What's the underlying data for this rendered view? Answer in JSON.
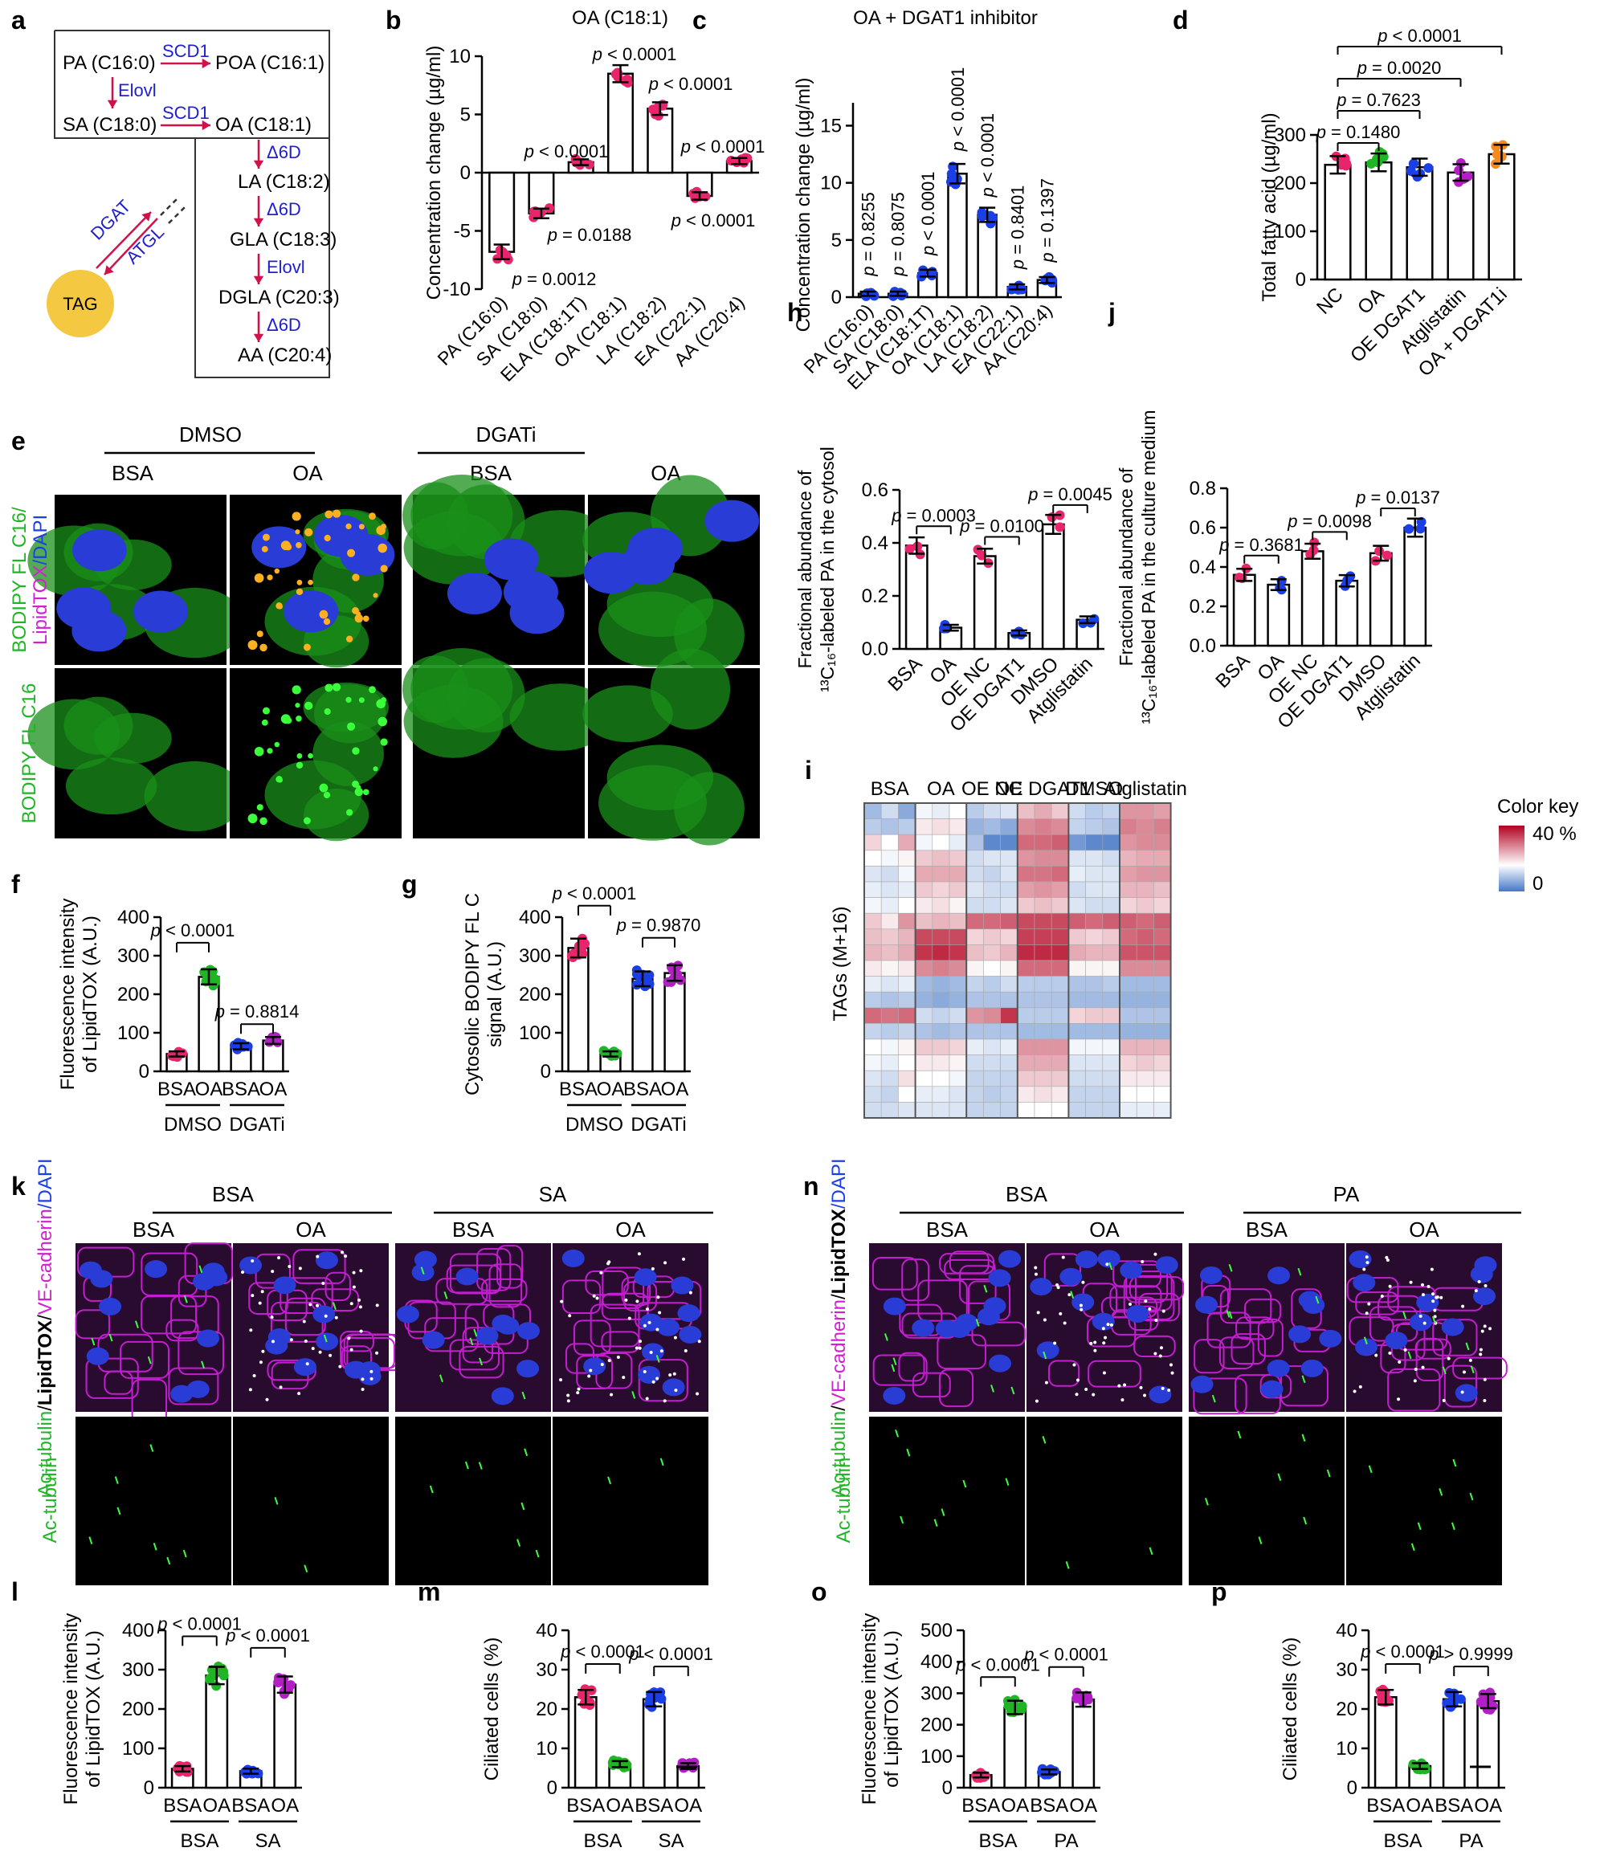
{
  "panel_letters": {
    "a": "a",
    "b": "b",
    "c": "c",
    "d": "d",
    "e": "e",
    "f": "f",
    "g": "g",
    "h": "h",
    "i": "i",
    "j": "j",
    "k": "k",
    "l": "l",
    "m": "m",
    "n": "n",
    "o": "o",
    "p": "p"
  },
  "colors": {
    "pink": "#e8246d",
    "green": "#1fb524",
    "blue": "#1b3fe6",
    "purple": "#b21fc4",
    "orange": "#f5891f",
    "arrow": "#d1114a",
    "enzyme": "#2020d0",
    "tag_fill": "#f5c842"
  },
  "pathway": {
    "nodes": [
      "PA (C16:0)",
      "POA (C16:1)",
      "SA (C18:0)",
      "OA (C18:1)",
      "LA (C18:2)",
      "GLA (C18:3)",
      "DGLA (C20:3)",
      "AA (C20:4)"
    ],
    "enzymes": [
      "SCD1",
      "Elovl",
      "SCD1",
      "Δ6D",
      "Δ6D",
      "Elovl",
      "Δ6D"
    ],
    "tag": "TAG",
    "tag_enzymes": [
      "DGAT",
      "ATGL"
    ]
  },
  "panel_e": {
    "groups": [
      "DMSO",
      "DGATi"
    ],
    "conds": [
      "BSA",
      "OA",
      "BSA",
      "OA"
    ],
    "row_labels": {
      "row1_a": "BODIPY FL C",
      "row1_sub": "16",
      "row1_b": "/",
      "row1_c": "LipidTOX",
      "row1_d": "/DAPI",
      "row2_a": "BODIPY FL C",
      "row2_sub": "16"
    }
  },
  "panel_k": {
    "groups": [
      "BSA",
      "SA"
    ],
    "conds": [
      "BSA",
      "OA",
      "BSA",
      "OA"
    ],
    "row1": [
      "Ac-tubulin",
      "/",
      "LipidTOX",
      "/",
      "VE-cadherin",
      "/DAPI"
    ],
    "row2": "Ac-tubulin"
  },
  "panel_n": {
    "groups": [
      "BSA",
      "PA"
    ],
    "conds": [
      "BSA",
      "OA",
      "BSA",
      "OA"
    ],
    "row1": [
      "Ac-tubulin",
      "/",
      "VE-cadherin",
      "/",
      "LipidTOX",
      "/DAPI"
    ],
    "row2": "Ac-tubulin"
  },
  "heatmap": {
    "columns": [
      "BSA",
      "OA",
      "OE NC",
      "OE DGAT1",
      "DMSO",
      "Atglistatin"
    ],
    "ylabel": "TAGs (M+16)",
    "key_title": "Color key",
    "key_max": "40 %",
    "key_min": "0",
    "rows": [
      [
        8,
        12,
        6,
        15,
        14,
        16,
        10,
        12,
        13,
        22,
        24,
        21,
        12,
        10,
        11,
        26,
        26,
        25
      ],
      [
        10,
        9,
        10,
        18,
        19,
        18,
        7,
        8,
        6,
        27,
        28,
        27,
        11,
        10,
        9,
        28,
        27,
        28
      ],
      [
        20,
        16,
        24,
        15,
        16,
        14,
        9,
        2,
        2,
        30,
        30,
        31,
        4,
        2,
        2,
        26,
        27,
        27
      ],
      [
        16,
        15,
        17,
        21,
        22,
        21,
        12,
        13,
        13,
        26,
        27,
        27,
        13,
        13,
        12,
        23,
        24,
        24
      ],
      [
        13,
        12,
        15,
        24,
        24,
        24,
        12,
        11,
        13,
        29,
        29,
        30,
        14,
        13,
        13,
        25,
        26,
        26
      ],
      [
        14,
        13,
        14,
        21,
        20,
        21,
        13,
        12,
        12,
        25,
        26,
        25,
        12,
        13,
        13,
        23,
        23,
        22
      ],
      [
        15,
        14,
        16,
        18,
        19,
        17,
        12,
        12,
        13,
        21,
        22,
        21,
        13,
        12,
        12,
        20,
        21,
        20
      ],
      [
        21,
        18,
        26,
        22,
        23,
        22,
        30,
        30,
        31,
        33,
        33,
        33,
        31,
        30,
        31,
        31,
        30,
        31
      ],
      [
        22,
        21,
        23,
        33,
        33,
        33,
        20,
        21,
        20,
        34,
        34,
        34,
        21,
        20,
        21,
        30,
        31,
        30
      ],
      [
        23,
        22,
        24,
        35,
        36,
        35,
        22,
        21,
        23,
        36,
        36,
        36,
        24,
        23,
        23,
        32,
        32,
        32
      ],
      [
        18,
        17,
        18,
        27,
        28,
        27,
        17,
        16,
        17,
        30,
        30,
        30,
        17,
        17,
        17,
        27,
        27,
        27
      ],
      [
        14,
        13,
        14,
        8,
        7,
        8,
        11,
        10,
        12,
        10,
        10,
        10,
        9,
        9,
        10,
        8,
        8,
        8
      ],
      [
        10,
        9,
        10,
        7,
        6,
        7,
        9,
        9,
        9,
        9,
        9,
        9,
        8,
        8,
        8,
        7,
        7,
        7
      ],
      [
        30,
        29,
        30,
        12,
        11,
        12,
        26,
        27,
        35,
        10,
        10,
        10,
        20,
        21,
        21,
        9,
        9,
        9
      ],
      [
        11,
        10,
        11,
        9,
        8,
        9,
        9,
        9,
        9,
        8,
        8,
        8,
        8,
        8,
        8,
        7,
        7,
        7
      ],
      [
        16,
        15,
        17,
        21,
        21,
        20,
        14,
        13,
        14,
        26,
        26,
        26,
        15,
        15,
        15,
        23,
        23,
        23
      ],
      [
        15,
        14,
        16,
        18,
        18,
        17,
        12,
        12,
        12,
        24,
        24,
        24,
        13,
        13,
        13,
        20,
        21,
        20
      ],
      [
        13,
        12,
        19,
        16,
        16,
        15,
        11,
        11,
        11,
        21,
        21,
        21,
        12,
        12,
        12,
        18,
        18,
        18
      ],
      [
        12,
        11,
        16,
        14,
        14,
        13,
        11,
        10,
        11,
        18,
        19,
        18,
        11,
        11,
        11,
        16,
        16,
        16
      ],
      [
        12,
        12,
        13,
        13,
        13,
        13,
        11,
        11,
        11,
        16,
        16,
        16,
        11,
        11,
        11,
        14,
        14,
        14
      ]
    ]
  },
  "chart_data": [
    {
      "id": "b",
      "type": "bar",
      "title": "OA (C18:1)",
      "ylabel": "Concentration change (µg/ml)",
      "ylim": [
        -10,
        10
      ],
      "yticks": [
        "-10",
        "-5",
        "0",
        "5",
        "10"
      ],
      "categories": [
        "PA (C16:0)",
        "SA (C18:0)",
        "ELA (C18:1T)",
        "OA (C18:1)",
        "LA (C18:2)",
        "EA (C22:1)",
        "AA (C20:4)"
      ],
      "values": [
        -6.8,
        -3.5,
        0.9,
        8.5,
        5.5,
        -2,
        1
      ],
      "pvalues": [
        "p = 0.0012",
        "p = 0.0188",
        "p < 0.0001",
        "p < 0.0001",
        "p < 0.0001",
        "p < 0.0001",
        "p < 0.0001"
      ],
      "color": "pink"
    },
    {
      "id": "c",
      "type": "bar",
      "title": "OA + DGAT1 inhibitor",
      "ylabel": "Concentration change (µg/ml)",
      "ylim": [
        0,
        17
      ],
      "yticks": [
        "0",
        "5",
        "10",
        "15"
      ],
      "categories": [
        "PA (C16:0)",
        "SA (C18:0)",
        "ELA (C18:1T)",
        "OA (C18:1)",
        "LA (C18:2)",
        "EA (C22:1)",
        "AA (C20:4)"
      ],
      "values": [
        0.3,
        0.3,
        2.1,
        10.8,
        7.2,
        0.9,
        1.5
      ],
      "pvalues": [
        "p = 0.8255",
        "p = 0.8075",
        "p < 0.0001",
        "p < 0.0001",
        "p < 0.0001",
        "p = 0.8401",
        "p = 0.1397"
      ],
      "color": "blue"
    },
    {
      "id": "d",
      "type": "bar",
      "ylabel": "Total fatty acid (µg/ml)",
      "ylim": [
        0,
        300
      ],
      "yticks": [
        "0",
        "100",
        "200",
        "300"
      ],
      "categories": [
        "NC",
        "OA",
        "OE DGAT1",
        "Atglistatin",
        "OA + DGAT1i"
      ],
      "values": [
        238,
        243,
        233,
        222,
        260
      ],
      "colors": [
        "pink",
        "green",
        "blue",
        "purple",
        "orange"
      ],
      "brackets": [
        {
          "from": 0,
          "to": 1,
          "label": "p = 0.1480"
        },
        {
          "from": 0,
          "to": 2,
          "label": "p = 0.7623"
        },
        {
          "from": 0,
          "to": 3,
          "label": "p = 0.0020"
        },
        {
          "from": 0,
          "to": 4,
          "label": "p < 0.0001"
        }
      ]
    },
    {
      "id": "h",
      "type": "bar",
      "ylabel": "Fractional abundance of ¹³C₁₆-labeled PA in the cytosol",
      "ylim": [
        0,
        0.6
      ],
      "yticks": [
        "0.0",
        "0.2",
        "0.4",
        "0.6"
      ],
      "categories": [
        "BSA",
        "OA",
        "OE NC",
        "OE DGAT1",
        "DMSO",
        "Atglistatin"
      ],
      "values": [
        0.39,
        0.08,
        0.35,
        0.06,
        0.47,
        0.11
      ],
      "colors": [
        "pink",
        "blue",
        "pink",
        "blue",
        "pink",
        "blue"
      ],
      "brackets": [
        {
          "from": 0,
          "to": 1,
          "label": "p = 0.0003"
        },
        {
          "from": 2,
          "to": 3,
          "label": "p = 0.0100"
        },
        {
          "from": 4,
          "to": 5,
          "label": "p = 0.0045"
        }
      ]
    },
    {
      "id": "j",
      "type": "bar",
      "ylabel": "Fractional abundance of ¹³C₁₆-labeled PA in the culture medium",
      "ylim": [
        0,
        0.8
      ],
      "yticks": [
        "0.0",
        "0.2",
        "0.4",
        "0.6",
        "0.8"
      ],
      "categories": [
        "BSA",
        "OA",
        "OE NC",
        "OE DGAT1",
        "DMSO",
        "Atglistatin"
      ],
      "values": [
        0.36,
        0.31,
        0.48,
        0.33,
        0.47,
        0.6
      ],
      "colors": [
        "pink",
        "blue",
        "pink",
        "blue",
        "pink",
        "blue"
      ],
      "brackets": [
        {
          "from": 0,
          "to": 1,
          "label": "p = 0.3681"
        },
        {
          "from": 2,
          "to": 3,
          "label": "p = 0.0098"
        },
        {
          "from": 4,
          "to": 5,
          "label": "p = 0.0137"
        }
      ]
    },
    {
      "id": "f",
      "type": "bar",
      "ylabel": "Fluorescence intensity of LipidTOX (A.U.)",
      "ylim": [
        0,
        400
      ],
      "yticks": [
        "0",
        "100",
        "200",
        "300",
        "400"
      ],
      "categories": [
        "BSA",
        "OA",
        "BSA",
        "OA"
      ],
      "groups": [
        "DMSO",
        "DGATi"
      ],
      "values": [
        45,
        245,
        65,
        80
      ],
      "colors": [
        "pink",
        "green",
        "blue",
        "purple"
      ],
      "brackets": [
        {
          "from": 0,
          "to": 1,
          "label": "p < 0.0001"
        },
        {
          "from": 2,
          "to": 3,
          "label": "p = 0.8814"
        }
      ]
    },
    {
      "id": "g",
      "type": "bar",
      "ylabel": "Cytosolic BODIPY FL C16 signal (A.U.)",
      "ylim": [
        0,
        400
      ],
      "yticks": [
        "0",
        "100",
        "200",
        "300",
        "400"
      ],
      "categories": [
        "BSA",
        "OA",
        "BSA",
        "OA"
      ],
      "groups": [
        "DMSO",
        "DGATi"
      ],
      "values": [
        320,
        45,
        240,
        255
      ],
      "colors": [
        "pink",
        "green",
        "blue",
        "purple"
      ],
      "brackets": [
        {
          "from": 0,
          "to": 1,
          "label": "p < 0.0001"
        },
        {
          "from": 2,
          "to": 3,
          "label": "p = 0.9870"
        }
      ]
    },
    {
      "id": "l",
      "type": "bar",
      "ylabel": "Fluorescence intensity of LipidTOX (A.U.)",
      "ylim": [
        0,
        400
      ],
      "yticks": [
        "0",
        "100",
        "200",
        "300",
        "400"
      ],
      "categories": [
        "BSA",
        "OA",
        "BSA",
        "OA"
      ],
      "groups": [
        "BSA",
        "SA"
      ],
      "values": [
        48,
        285,
        42,
        262
      ],
      "colors": [
        "pink",
        "green",
        "blue",
        "purple"
      ],
      "brackets": [
        {
          "from": 0,
          "to": 1,
          "label": "p < 0.0001"
        },
        {
          "from": 2,
          "to": 3,
          "label": "p < 0.0001"
        }
      ]
    },
    {
      "id": "m",
      "type": "bar",
      "ylabel": "Ciliated cells (%)",
      "ylim": [
        0,
        40
      ],
      "yticks": [
        "0",
        "10",
        "20",
        "30",
        "40"
      ],
      "categories": [
        "BSA",
        "OA",
        "BSA",
        "OA"
      ],
      "groups": [
        "BSA",
        "SA"
      ],
      "values": [
        23,
        6,
        22.5,
        5.5
      ],
      "colors": [
        "pink",
        "green",
        "blue",
        "purple"
      ],
      "brackets": [
        {
          "from": 0,
          "to": 1,
          "label": "p < 0.0001"
        },
        {
          "from": 2,
          "to": 3,
          "label": "p < 0.0001"
        }
      ]
    },
    {
      "id": "o",
      "type": "bar",
      "ylabel": "Fluorescence intensity of LipidTOX (A.U.)",
      "ylim": [
        0,
        500
      ],
      "yticks": [
        "0",
        "100",
        "200",
        "300",
        "400",
        "500"
      ],
      "categories": [
        "BSA",
        "OA",
        "BSA",
        "OA"
      ],
      "groups": [
        "BSA",
        "PA"
      ],
      "values": [
        40,
        255,
        50,
        280
      ],
      "colors": [
        "pink",
        "green",
        "blue",
        "purple"
      ],
      "brackets": [
        {
          "from": 0,
          "to": 1,
          "label": "p < 0.0001"
        },
        {
          "from": 2,
          "to": 3,
          "label": "p < 0.0001"
        }
      ]
    },
    {
      "id": "p",
      "type": "bar",
      "ylabel": "Ciliated cells (%)",
      "ylim": [
        0,
        40
      ],
      "yticks": [
        "0",
        "10",
        "20",
        "30",
        "40"
      ],
      "categories": [
        "BSA",
        "OA",
        "BSA",
        "OA"
      ],
      "groups": [
        "BSA",
        "PA"
      ],
      "values": [
        23,
        5.5,
        22.5,
        22
      ],
      "colors": [
        "pink",
        "green",
        "blue",
        "purple"
      ],
      "brackets": [
        {
          "from": 0,
          "to": 1,
          "label": "p < 0.0001"
        },
        {
          "from": 2,
          "to": 3,
          "label": "p > 0.9999"
        }
      ]
    }
  ]
}
